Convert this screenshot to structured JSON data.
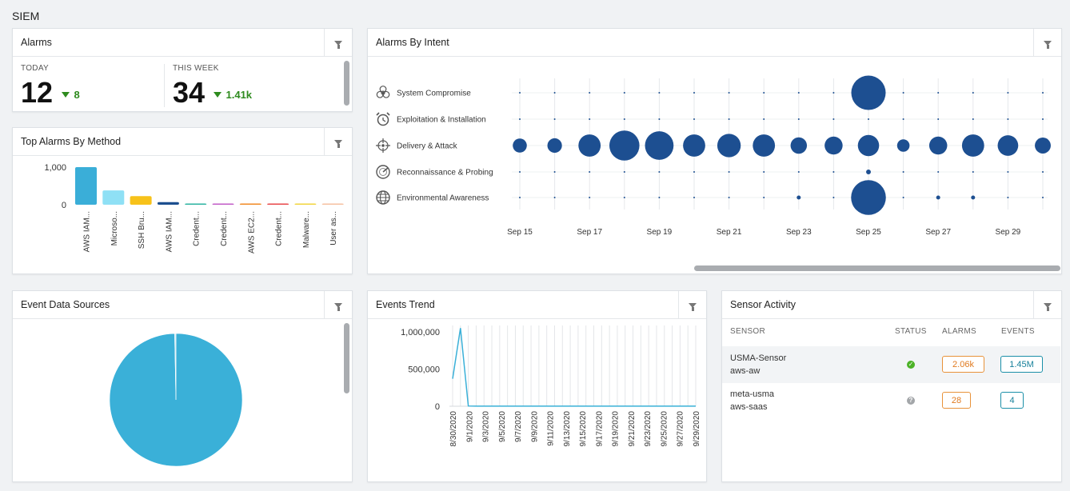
{
  "page": {
    "title": "SIEM"
  },
  "alarms": {
    "title": "Alarms",
    "today_label": "TODAY",
    "today_value": "12",
    "today_delta": "8",
    "week_label": "THIS WEEK",
    "week_value": "34",
    "week_delta": "1.41k"
  },
  "top_alarms": {
    "title": "Top Alarms By Method",
    "chart_data": {
      "type": "bar",
      "categories": [
        "AWS IAM...",
        "Microso...",
        "SSH Bru...",
        "AWS IAM...",
        "Credent...",
        "Credent...",
        "AWS EC2...",
        "Credent...",
        "Malware...",
        "User as..."
      ],
      "values": [
        1000,
        380,
        230,
        70,
        30,
        20,
        15,
        15,
        10,
        10
      ],
      "colors": [
        "#3aaed8",
        "#8fe0f5",
        "#f7c21a",
        "#1c4f8f",
        "#2bb3a0",
        "#c15cc7",
        "#f08a24",
        "#e8474a",
        "#f2d43d",
        "#f5c0a0"
      ],
      "yticks": [
        "1,000",
        "0"
      ],
      "ylim": [
        0,
        1000
      ]
    }
  },
  "intent": {
    "title": "Alarms By Intent",
    "rows": [
      {
        "label": "System Compromise",
        "icon": "biohazard-icon"
      },
      {
        "label": "Exploitation & Installation",
        "icon": "alarm-clock-icon"
      },
      {
        "label": "Delivery & Attack",
        "icon": "crosshair-icon"
      },
      {
        "label": "Reconnaissance & Probing",
        "icon": "radar-icon"
      },
      {
        "label": "Environmental Awareness",
        "icon": "globe-icon"
      }
    ],
    "chart_data": {
      "type": "scatter",
      "x_labels": [
        "Sep 15",
        "Sep 17",
        "Sep 19",
        "Sep 21",
        "Sep 23",
        "Sep 25",
        "Sep 27",
        "Sep 29"
      ],
      "days": [
        "Sep 15",
        "Sep 16",
        "Sep 17",
        "Sep 18",
        "Sep 19",
        "Sep 20",
        "Sep 21",
        "Sep 22",
        "Sep 23",
        "Sep 24",
        "Sep 25",
        "Sep 26",
        "Sep 27",
        "Sep 28",
        "Sep 29",
        "Sep 30"
      ],
      "series": [
        {
          "category": "System Compromise",
          "values": [
            0,
            0,
            0,
            0,
            0,
            0,
            0,
            0,
            0,
            0,
            420,
            0,
            0,
            0,
            0,
            0
          ]
        },
        {
          "category": "Exploitation & Installation",
          "values": [
            0,
            0,
            0,
            0,
            0,
            0,
            0,
            0,
            0,
            0,
            0,
            0,
            0,
            0,
            0,
            0
          ]
        },
        {
          "category": "Delivery & Attack",
          "values": [
            70,
            75,
            175,
            320,
            290,
            175,
            195,
            175,
            95,
            115,
            160,
            55,
            115,
            175,
            150,
            90
          ]
        },
        {
          "category": "Reconnaissance & Probing",
          "values": [
            0,
            0,
            0,
            0,
            0,
            0,
            0,
            0,
            0,
            0,
            8,
            0,
            0,
            0,
            0,
            0
          ]
        },
        {
          "category": "Environmental Awareness",
          "values": [
            0,
            0,
            0,
            0,
            0,
            0,
            0,
            0,
            1,
            0,
            430,
            0,
            1,
            1,
            0,
            0
          ]
        }
      ],
      "color": "#1d4f91"
    }
  },
  "event_sources": {
    "title": "Event Data Sources",
    "chart_data": {
      "type": "pie",
      "slices": [
        {
          "value": 99.7,
          "color": "#3ab0d8"
        },
        {
          "value": 0.3,
          "color": "#cfe9f3"
        }
      ]
    }
  },
  "events_trend": {
    "title": "Events Trend",
    "chart_data": {
      "type": "line",
      "yticks": [
        "1,000,000",
        "500,000",
        "0"
      ],
      "ylim": [
        0,
        1000000
      ],
      "x_labels": [
        "8/30/2020",
        "9/1/2020",
        "9/3/2020",
        "9/5/2020",
        "9/7/2020",
        "9/9/2020",
        "9/11/2020",
        "9/13/2020",
        "9/15/2020",
        "9/17/2020",
        "9/19/2020",
        "9/21/2020",
        "9/23/2020",
        "9/25/2020",
        "9/27/2020",
        "9/29/2020"
      ],
      "values": [
        370000,
        1050000,
        3000,
        1000,
        1000,
        1000,
        1000,
        1000,
        1000,
        1000,
        1000,
        1000,
        1000,
        1000,
        1000,
        1000,
        1000,
        1000,
        1000,
        1000,
        1000,
        1000,
        1000,
        1000,
        1000,
        1000,
        1000,
        1000,
        1000,
        1000,
        1000,
        1000
      ],
      "color": "#3ab0d8"
    }
  },
  "sensor": {
    "title": "Sensor Activity",
    "headers": {
      "sensor": "SENSOR",
      "status": "STATUS",
      "alarms": "ALARMS",
      "events": "EVENTS"
    },
    "rows": [
      {
        "name": "USMA-Sensor",
        "sub": "aws-aw",
        "status": "ok",
        "alarms": "2.06k",
        "events": "1.45M"
      },
      {
        "name": "meta-usma",
        "sub": "aws-saas",
        "status": "unknown",
        "alarms": "28",
        "events": "4"
      }
    ]
  }
}
